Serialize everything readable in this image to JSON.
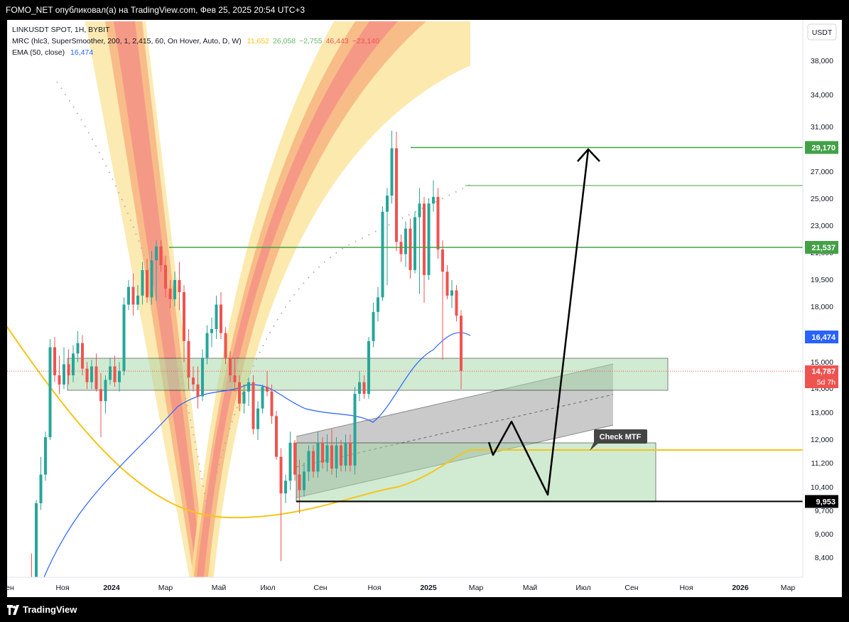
{
  "header": {
    "text": "FOMO_NET опубликовал(а) на TradingView.com, Фев 25, 2025 20:54 UTC+3"
  },
  "footer": {
    "brand": "TradingView"
  },
  "legend": {
    "line1": "LINKUSDT SPOT, 1H, BYBIT",
    "mrc_label": "MRC (hlc3, SuperSmoother, 200, 1, 2,415, 60, On Hover, Auto, D, W)",
    "mrc_values": [
      {
        "text": "11,652",
        "color": "#f5c518"
      },
      {
        "text": "26,058",
        "color": "#66bb6a"
      },
      {
        "text": "−2,755",
        "color": "#66bb6a"
      },
      {
        "text": "46,443",
        "color": "#ef5350"
      },
      {
        "text": "−23,140",
        "color": "#ef5350"
      }
    ],
    "ema_label": "EMA (50, close)",
    "ema_value": {
      "text": "16,474",
      "color": "#2962ff"
    }
  },
  "currency": "USDT",
  "colors": {
    "up": "#26a69a",
    "down": "#ef5350",
    "ema": "#2962ff",
    "mrc_mean": "#f5c518",
    "hline": "#43a047",
    "zone_fill": "#a5d6a7",
    "channel_fill": "#9e9e9e"
  },
  "chart_data": {
    "type": "candlestick",
    "symbol": "LINKUSDT SPOT, 1H, BYBIT",
    "y_scale": "log",
    "y_ticks": [
      "38,000",
      "34,000",
      "31,000",
      "27,000",
      "25,000",
      "23,000",
      "21,000",
      "19,500",
      "18,000",
      "15,000",
      "14,000",
      "13,000",
      "12,000",
      "11,200",
      "10,400",
      "9,700",
      "9,000",
      "8,400"
    ],
    "x_ticks": [
      "ен",
      "Ноя",
      "2024",
      "Мар",
      "Май",
      "Июл",
      "Сен",
      "Ноя",
      "2025",
      "Мар",
      "Май",
      "Июл",
      "Сен",
      "Ноя",
      "2026",
      "Мар"
    ],
    "candles": [
      {
        "o": 7.7,
        "h": 7.9,
        "l": 7.0,
        "c": 7.6
      },
      {
        "o": 7.6,
        "h": 8.5,
        "l": 7.3,
        "c": 7.3
      },
      {
        "o": 7.3,
        "h": 10.0,
        "l": 7.2,
        "c": 9.9
      },
      {
        "o": 9.9,
        "h": 11.4,
        "l": 9.7,
        "c": 10.8
      },
      {
        "o": 10.8,
        "h": 12.3,
        "l": 10.6,
        "c": 12.1
      },
      {
        "o": 12.1,
        "h": 16.3,
        "l": 12.0,
        "c": 15.9
      },
      {
        "o": 15.9,
        "h": 16.4,
        "l": 14.3,
        "c": 14.6
      },
      {
        "o": 14.6,
        "h": 15.5,
        "l": 13.8,
        "c": 14.2
      },
      {
        "o": 14.2,
        "h": 15.9,
        "l": 14.0,
        "c": 15.1
      },
      {
        "o": 15.1,
        "h": 15.8,
        "l": 14.2,
        "c": 14.6
      },
      {
        "o": 14.6,
        "h": 16.0,
        "l": 14.3,
        "c": 15.6
      },
      {
        "o": 15.6,
        "h": 16.7,
        "l": 15.2,
        "c": 16.1
      },
      {
        "o": 16.1,
        "h": 16.5,
        "l": 14.6,
        "c": 14.9
      },
      {
        "o": 14.9,
        "h": 15.2,
        "l": 14.0,
        "c": 14.3
      },
      {
        "o": 14.3,
        "h": 15.3,
        "l": 14.0,
        "c": 15.0
      },
      {
        "o": 15.0,
        "h": 15.6,
        "l": 13.9,
        "c": 14.0
      },
      {
        "o": 14.0,
        "h": 14.7,
        "l": 12.1,
        "c": 13.5
      },
      {
        "o": 13.5,
        "h": 14.6,
        "l": 13.0,
        "c": 14.4
      },
      {
        "o": 14.4,
        "h": 15.4,
        "l": 14.2,
        "c": 15.0
      },
      {
        "o": 15.0,
        "h": 15.5,
        "l": 14.1,
        "c": 14.3
      },
      {
        "o": 14.3,
        "h": 15.2,
        "l": 13.9,
        "c": 14.8
      },
      {
        "o": 14.8,
        "h": 18.5,
        "l": 14.6,
        "c": 18.1
      },
      {
        "o": 18.1,
        "h": 19.5,
        "l": 17.8,
        "c": 19.1
      },
      {
        "o": 19.1,
        "h": 19.9,
        "l": 17.5,
        "c": 18.1
      },
      {
        "o": 18.1,
        "h": 19.2,
        "l": 17.8,
        "c": 18.6
      },
      {
        "o": 18.6,
        "h": 20.6,
        "l": 18.1,
        "c": 20.1
      },
      {
        "o": 20.1,
        "h": 20.8,
        "l": 18.2,
        "c": 18.5
      },
      {
        "o": 18.5,
        "h": 21.3,
        "l": 18.1,
        "c": 20.7
      },
      {
        "o": 20.7,
        "h": 22.0,
        "l": 18.3,
        "c": 21.6
      },
      {
        "o": 21.6,
        "h": 22.0,
        "l": 20.0,
        "c": 20.4
      },
      {
        "o": 20.4,
        "h": 21.0,
        "l": 18.5,
        "c": 19.0
      },
      {
        "o": 19.0,
        "h": 19.5,
        "l": 17.9,
        "c": 18.4
      },
      {
        "o": 18.4,
        "h": 20.0,
        "l": 18.0,
        "c": 19.5
      },
      {
        "o": 19.5,
        "h": 20.6,
        "l": 17.8,
        "c": 18.8
      },
      {
        "o": 18.8,
        "h": 19.2,
        "l": 15.2,
        "c": 16.2
      },
      {
        "o": 16.2,
        "h": 16.8,
        "l": 14.0,
        "c": 14.5
      },
      {
        "o": 14.5,
        "h": 15.0,
        "l": 13.9,
        "c": 14.2
      },
      {
        "o": 14.2,
        "h": 15.0,
        "l": 13.2,
        "c": 13.7
      },
      {
        "o": 13.7,
        "h": 15.8,
        "l": 13.5,
        "c": 15.4
      },
      {
        "o": 15.4,
        "h": 17.0,
        "l": 15.1,
        "c": 16.6
      },
      {
        "o": 16.6,
        "h": 17.4,
        "l": 15.9,
        "c": 16.8
      },
      {
        "o": 16.8,
        "h": 18.6,
        "l": 16.3,
        "c": 18.1
      },
      {
        "o": 18.1,
        "h": 18.8,
        "l": 16.3,
        "c": 16.6
      },
      {
        "o": 16.6,
        "h": 16.9,
        "l": 15.1,
        "c": 15.4
      },
      {
        "o": 15.4,
        "h": 15.7,
        "l": 14.3,
        "c": 14.6
      },
      {
        "o": 14.6,
        "h": 15.4,
        "l": 13.9,
        "c": 14.3
      },
      {
        "o": 14.3,
        "h": 14.6,
        "l": 13.1,
        "c": 13.4
      },
      {
        "o": 13.4,
        "h": 14.2,
        "l": 13.0,
        "c": 13.9
      },
      {
        "o": 13.9,
        "h": 14.5,
        "l": 13.3,
        "c": 14.3
      },
      {
        "o": 14.3,
        "h": 14.6,
        "l": 12.2,
        "c": 12.4
      },
      {
        "o": 12.4,
        "h": 13.5,
        "l": 12.0,
        "c": 13.2
      },
      {
        "o": 13.2,
        "h": 14.2,
        "l": 13.0,
        "c": 14.1
      },
      {
        "o": 14.1,
        "h": 14.8,
        "l": 13.7,
        "c": 13.9
      },
      {
        "o": 13.9,
        "h": 14.2,
        "l": 12.6,
        "c": 12.9
      },
      {
        "o": 12.9,
        "h": 13.1,
        "l": 11.3,
        "c": 11.4
      },
      {
        "o": 11.4,
        "h": 11.7,
        "l": 8.3,
        "c": 10.2
      },
      {
        "o": 10.2,
        "h": 10.8,
        "l": 9.9,
        "c": 10.6
      },
      {
        "o": 10.6,
        "h": 12.3,
        "l": 10.3,
        "c": 11.9
      },
      {
        "o": 11.9,
        "h": 12.0,
        "l": 10.6,
        "c": 10.8
      },
      {
        "o": 10.8,
        "h": 11.3,
        "l": 9.6,
        "c": 10.3
      },
      {
        "o": 10.3,
        "h": 11.2,
        "l": 10.1,
        "c": 10.9
      },
      {
        "o": 10.9,
        "h": 11.8,
        "l": 10.6,
        "c": 11.6
      },
      {
        "o": 11.6,
        "h": 11.8,
        "l": 10.7,
        "c": 10.9
      },
      {
        "o": 10.9,
        "h": 12.3,
        "l": 10.7,
        "c": 11.9
      },
      {
        "o": 11.9,
        "h": 12.1,
        "l": 11.0,
        "c": 11.2
      },
      {
        "o": 11.2,
        "h": 12.2,
        "l": 10.9,
        "c": 11.8
      },
      {
        "o": 11.8,
        "h": 12.4,
        "l": 10.8,
        "c": 11.0
      },
      {
        "o": 11.0,
        "h": 12.1,
        "l": 10.7,
        "c": 11.8
      },
      {
        "o": 11.8,
        "h": 12.0,
        "l": 10.9,
        "c": 11.1
      },
      {
        "o": 11.1,
        "h": 12.2,
        "l": 10.9,
        "c": 11.9
      },
      {
        "o": 11.9,
        "h": 12.2,
        "l": 10.9,
        "c": 11.1
      },
      {
        "o": 11.1,
        "h": 14.1,
        "l": 10.8,
        "c": 13.8
      },
      {
        "o": 13.8,
        "h": 14.8,
        "l": 13.5,
        "c": 14.3
      },
      {
        "o": 14.3,
        "h": 14.6,
        "l": 13.6,
        "c": 13.8
      },
      {
        "o": 13.8,
        "h": 16.4,
        "l": 13.6,
        "c": 16.2
      },
      {
        "o": 16.2,
        "h": 18.2,
        "l": 15.9,
        "c": 17.7
      },
      {
        "o": 17.7,
        "h": 19.1,
        "l": 17.2,
        "c": 18.5
      },
      {
        "o": 18.5,
        "h": 24.4,
        "l": 18.3,
        "c": 24.0
      },
      {
        "o": 24.0,
        "h": 25.8,
        "l": 19.2,
        "c": 25.2
      },
      {
        "o": 25.2,
        "h": 30.7,
        "l": 24.6,
        "c": 29.1
      },
      {
        "o": 29.1,
        "h": 30.6,
        "l": 21.3,
        "c": 21.9
      },
      {
        "o": 21.9,
        "h": 22.4,
        "l": 20.6,
        "c": 21.1
      },
      {
        "o": 21.1,
        "h": 23.3,
        "l": 20.3,
        "c": 22.8
      },
      {
        "o": 22.8,
        "h": 23.5,
        "l": 19.6,
        "c": 20.1
      },
      {
        "o": 20.1,
        "h": 24.0,
        "l": 19.9,
        "c": 23.6
      },
      {
        "o": 23.6,
        "h": 25.8,
        "l": 18.7,
        "c": 24.6
      },
      {
        "o": 24.6,
        "h": 25.1,
        "l": 18.2,
        "c": 19.8
      },
      {
        "o": 19.8,
        "h": 25.0,
        "l": 19.5,
        "c": 24.6
      },
      {
        "o": 24.6,
        "h": 26.4,
        "l": 24.0,
        "c": 25.1
      },
      {
        "o": 25.1,
        "h": 25.8,
        "l": 20.8,
        "c": 21.4
      },
      {
        "o": 21.4,
        "h": 22.0,
        "l": 15.3,
        "c": 20.0
      },
      {
        "o": 20.0,
        "h": 20.4,
        "l": 18.4,
        "c": 18.6
      },
      {
        "o": 18.6,
        "h": 19.5,
        "l": 17.9,
        "c": 18.9
      },
      {
        "o": 18.9,
        "h": 19.2,
        "l": 17.2,
        "c": 17.5
      },
      {
        "o": 17.5,
        "h": 17.8,
        "l": 14.0,
        "c": 14.8
      }
    ],
    "horizontal_lines": [
      {
        "label": "29,170",
        "value": 29.17
      },
      {
        "label": "21,537",
        "value": 21.537
      },
      {
        "label": "9,953",
        "value": 9.953
      }
    ],
    "price_labels": [
      {
        "label": "16,474",
        "value": 16.474
      },
      {
        "label": "14,787",
        "value": 14.787
      },
      {
        "label": "5d 7h",
        "value": 14.787
      }
    ],
    "annotations": [
      {
        "text": "Check MTF"
      }
    ]
  }
}
